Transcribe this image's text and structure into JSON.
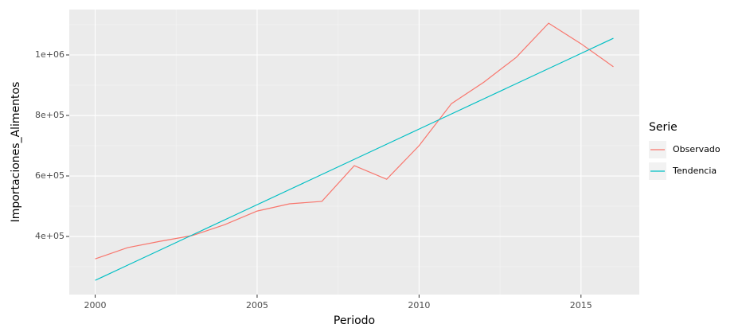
{
  "chart_data": {
    "type": "line",
    "x_label": "Periodo",
    "y_label": "Importaciones_Alimentos",
    "legend_title": "Serie",
    "x": [
      2000,
      2001,
      2002,
      2003,
      2004,
      2005,
      2006,
      2007,
      2008,
      2009,
      2010,
      2011,
      2012,
      2013,
      2014,
      2015,
      2016
    ],
    "series": [
      {
        "name": "Observado",
        "color": "#F8766D",
        "values": [
          326000,
          363000,
          384000,
          403000,
          439000,
          484000,
          508000,
          516000,
          634000,
          589000,
          700000,
          839000,
          910000,
          992000,
          1105000,
          1037000,
          961000
        ]
      },
      {
        "name": "Tendencia",
        "color": "#00BFC4",
        "values": [
          255000,
          305000,
          355000,
          405000,
          455000,
          505000,
          555000,
          605000,
          655000,
          705000,
          755000,
          805000,
          855000,
          905000,
          955000,
          1005000,
          1055000
        ]
      }
    ],
    "xlim": [
      1999.2,
      2016.8
    ],
    "xticks": [
      2000,
      2005,
      2010,
      2015
    ],
    "ylim": [
      208000,
      1150000
    ],
    "yticks": [
      {
        "value": 400000,
        "label": "4e+05"
      },
      {
        "value": 600000,
        "label": "6e+05"
      },
      {
        "value": 800000,
        "label": "8e+05"
      },
      {
        "value": 1000000,
        "label": "1e+06"
      }
    ],
    "grid": true,
    "legend_position": "right"
  }
}
